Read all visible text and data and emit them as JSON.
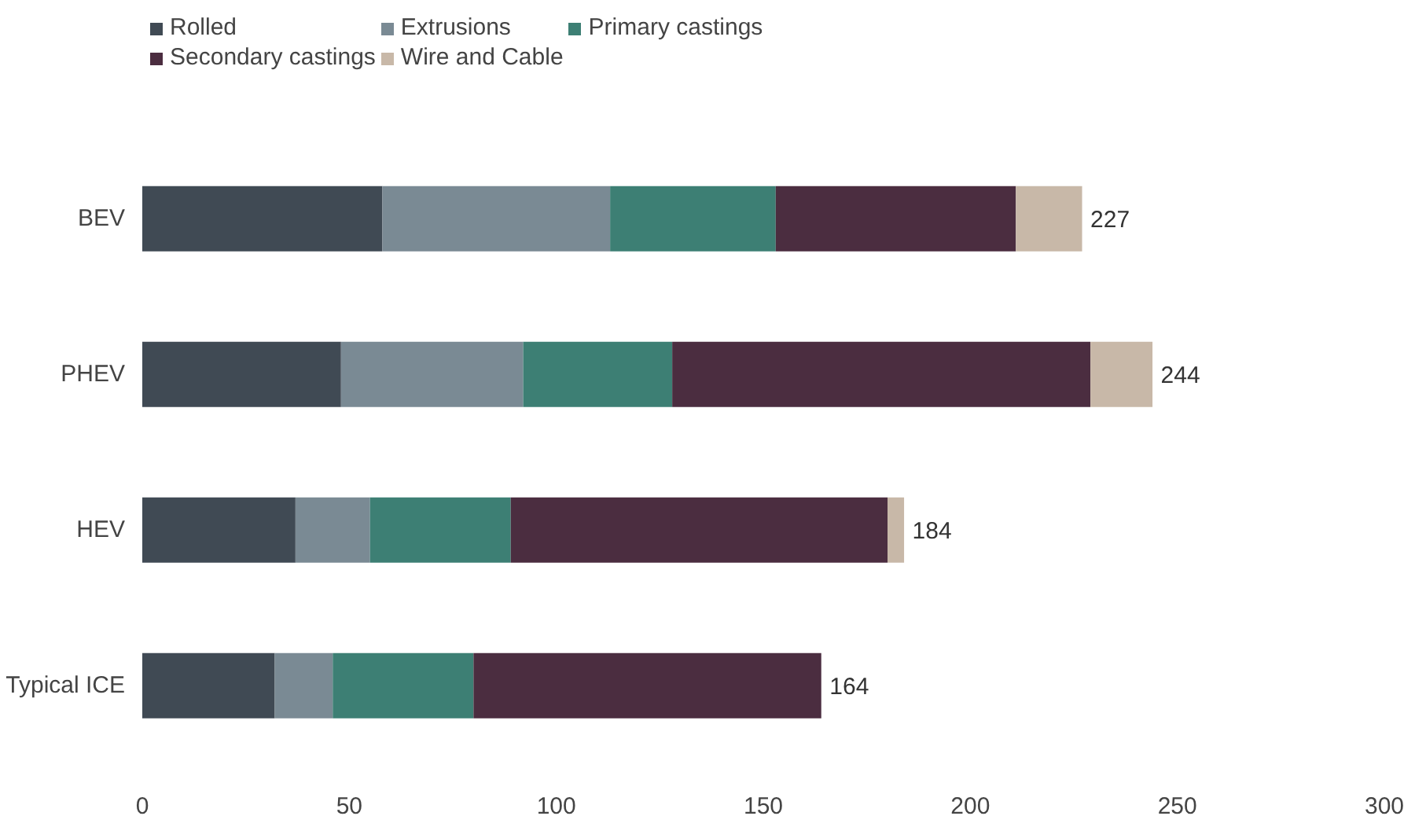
{
  "chart_data": {
    "type": "bar",
    "orientation": "horizontal",
    "stacked": true,
    "categories": [
      "BEV",
      "PHEV",
      "HEV",
      "Typical ICE"
    ],
    "series": [
      {
        "name": "Rolled",
        "color": "#404a54",
        "values": [
          58,
          48,
          37,
          32
        ]
      },
      {
        "name": "Extrusions",
        "color": "#7a8a94",
        "values": [
          55,
          44,
          18,
          14
        ]
      },
      {
        "name": "Primary castings",
        "color": "#3d7f74",
        "values": [
          40,
          36,
          34,
          34
        ]
      },
      {
        "name": "Secondary castings",
        "color": "#4b2d40",
        "values": [
          58,
          101,
          91,
          84
        ]
      },
      {
        "name": "Wire and Cable",
        "color": "#c8b8a8",
        "values": [
          16,
          15,
          4,
          0
        ]
      }
    ],
    "totals": [
      "227",
      "244",
      "184",
      "164"
    ],
    "xlim": [
      0,
      300
    ],
    "xticks": [
      0,
      50,
      100,
      150,
      200,
      250,
      300
    ],
    "grid": false,
    "legend": "top"
  }
}
